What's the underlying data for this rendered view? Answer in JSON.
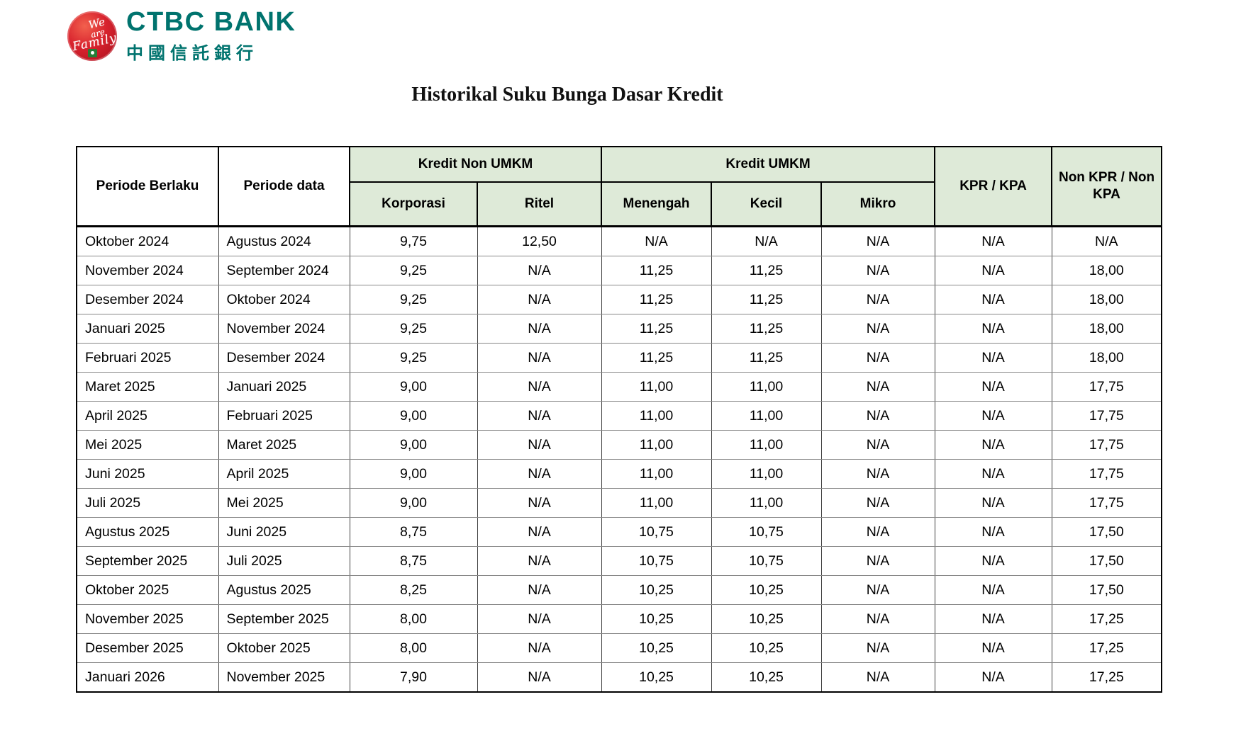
{
  "brand": {
    "bank_name": "CTBC BANK",
    "bank_name_chinese": "中國信託銀行",
    "badge_text_we": "We",
    "badge_text_are": "are",
    "badge_text_family": "Family"
  },
  "page": {
    "title": "Historikal Suku Bunga Dasar Kredit"
  },
  "table": {
    "headers": {
      "periode_berlaku": "Periode Berlaku",
      "periode_data": "Periode data",
      "group_kredit_non_umkm": "Kredit Non UMKM",
      "group_kredit_umkm": "Kredit UMKM",
      "korporasi": "Korporasi",
      "ritel": "Ritel",
      "menengah": "Menengah",
      "kecil": "Kecil",
      "mikro": "Mikro",
      "kpr_kpa": "KPR / KPA",
      "non_kpr_kpa": "Non KPR / Non KPA"
    },
    "rows": [
      [
        "Oktober 2024",
        "Agustus 2024",
        "9,75",
        "12,50",
        "N/A",
        "N/A",
        "N/A",
        "N/A",
        "N/A"
      ],
      [
        "November 2024",
        "September 2024",
        "9,25",
        "N/A",
        "11,25",
        "11,25",
        "N/A",
        "N/A",
        "18,00"
      ],
      [
        "Desember 2024",
        "Oktober 2024",
        "9,25",
        "N/A",
        "11,25",
        "11,25",
        "N/A",
        "N/A",
        "18,00"
      ],
      [
        "Januari 2025",
        "November 2024",
        "9,25",
        "N/A",
        "11,25",
        "11,25",
        "N/A",
        "N/A",
        "18,00"
      ],
      [
        "Februari 2025",
        "Desember 2024",
        "9,25",
        "N/A",
        "11,25",
        "11,25",
        "N/A",
        "N/A",
        "18,00"
      ],
      [
        "Maret 2025",
        "Januari 2025",
        "9,00",
        "N/A",
        "11,00",
        "11,00",
        "N/A",
        "N/A",
        "17,75"
      ],
      [
        "April 2025",
        "Februari 2025",
        "9,00",
        "N/A",
        "11,00",
        "11,00",
        "N/A",
        "N/A",
        "17,75"
      ],
      [
        "Mei 2025",
        "Maret 2025",
        "9,00",
        "N/A",
        "11,00",
        "11,00",
        "N/A",
        "N/A",
        "17,75"
      ],
      [
        "Juni 2025",
        "April 2025",
        "9,00",
        "N/A",
        "11,00",
        "11,00",
        "N/A",
        "N/A",
        "17,75"
      ],
      [
        "Juli 2025",
        "Mei 2025",
        "9,00",
        "N/A",
        "11,00",
        "11,00",
        "N/A",
        "N/A",
        "17,75"
      ],
      [
        "Agustus 2025",
        "Juni 2025",
        "8,75",
        "N/A",
        "10,75",
        "10,75",
        "N/A",
        "N/A",
        "17,50"
      ],
      [
        "September 2025",
        "Juli 2025",
        "8,75",
        "N/A",
        "10,75",
        "10,75",
        "N/A",
        "N/A",
        "17,50"
      ],
      [
        "Oktober 2025",
        "Agustus 2025",
        "8,25",
        "N/A",
        "10,25",
        "10,25",
        "N/A",
        "N/A",
        "17,50"
      ],
      [
        "November 2025",
        "September 2025",
        "8,00",
        "N/A",
        "10,25",
        "10,25",
        "N/A",
        "N/A",
        "17,25"
      ],
      [
        "Desember 2025",
        "Oktober 2025",
        "8,00",
        "N/A",
        "10,25",
        "10,25",
        "N/A",
        "N/A",
        "17,25"
      ],
      [
        "Januari 2026",
        "November 2025",
        "7,90",
        "N/A",
        "10,25",
        "10,25",
        "N/A",
        "N/A",
        "17,25"
      ]
    ]
  },
  "colors": {
    "header_green": "#deead8",
    "brand_teal": "#00736e",
    "logo_red": "#d8232e",
    "logo_green_square": "#237f37",
    "grid_gray": "#878787",
    "border_black": "#000000"
  }
}
